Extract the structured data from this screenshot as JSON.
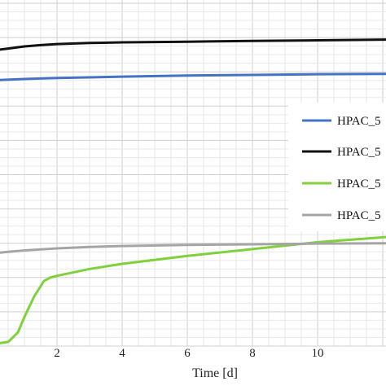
{
  "chart_data": {
    "type": "line",
    "xlabel": "Time [d]",
    "x_ticks": [
      2,
      4,
      6,
      8,
      10
    ],
    "xlim": [
      0,
      12.1
    ],
    "ylim": [
      0,
      1
    ],
    "grid": true,
    "legend_position": "right",
    "series": [
      {
        "name": "HPAC_5",
        "color": "#4472c4",
        "x": [
          0,
          1,
          2,
          4,
          6,
          8,
          10,
          12.1
        ],
        "y": [
          0.775,
          0.779,
          0.782,
          0.786,
          0.789,
          0.791,
          0.793,
          0.794
        ]
      },
      {
        "name": "HPAC_5",
        "color": "#111111",
        "x": [
          0,
          0.5,
          1,
          1.5,
          2,
          3,
          4,
          6,
          8,
          10,
          12.1
        ],
        "y": [
          0.862,
          0.868,
          0.874,
          0.878,
          0.881,
          0.884,
          0.886,
          0.888,
          0.89,
          0.892,
          0.894
        ]
      },
      {
        "name": "HPAC_5",
        "color": "#7fd13b",
        "x": [
          0,
          0.2,
          0.5,
          0.8,
          1,
          1.3,
          1.6,
          1.8,
          2,
          3,
          4,
          6,
          8,
          10,
          12.1
        ],
        "y": [
          0.008,
          0.008,
          0.012,
          0.04,
          0.085,
          0.145,
          0.19,
          0.2,
          0.205,
          0.225,
          0.24,
          0.263,
          0.283,
          0.303,
          0.318
        ]
      },
      {
        "name": "HPAC_5",
        "color": "#a5a5a5",
        "x": [
          0,
          0.5,
          1,
          2,
          3,
          4,
          6,
          8,
          10,
          12.1
        ],
        "y": [
          0.27,
          0.275,
          0.279,
          0.285,
          0.289,
          0.292,
          0.295,
          0.297,
          0.299,
          0.3
        ]
      }
    ]
  }
}
